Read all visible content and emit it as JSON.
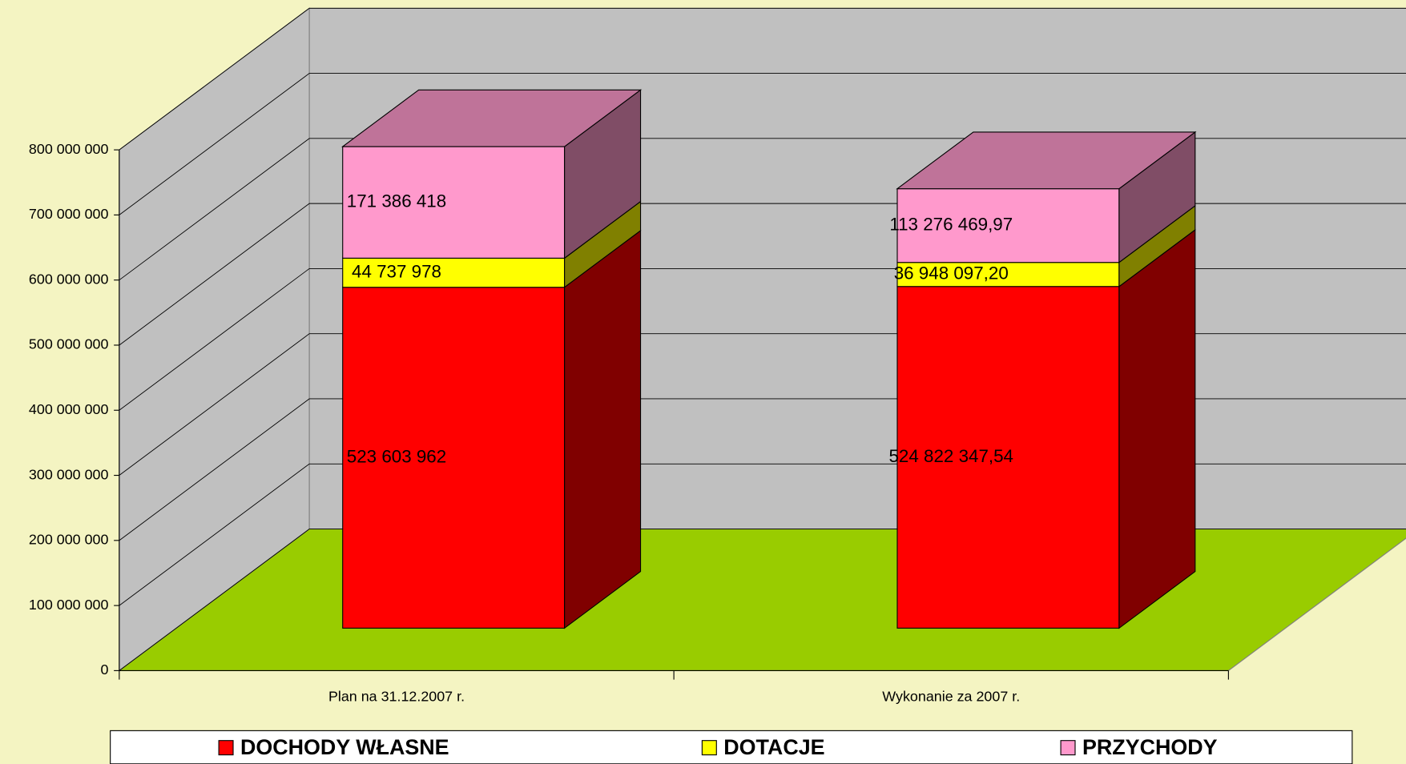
{
  "chart_data": {
    "type": "bar",
    "stacked": true,
    "categories": [
      "Plan na 31.12.2007 r.",
      "Wykonanie za 2007 r."
    ],
    "series": [
      {
        "name": "DOCHODY WŁASNE",
        "color": "#ff0000",
        "side_color": "#800000",
        "values": [
          523603962,
          524822347.54
        ],
        "value_labels": [
          "523 603 962",
          "524 822 347,54"
        ]
      },
      {
        "name": "DOTACJE",
        "color": "#ffff00",
        "side_color": "#808000",
        "values": [
          44737978,
          36948097.2
        ],
        "value_labels": [
          "44 737 978",
          "36 948 097,20"
        ]
      },
      {
        "name": "PRZYCHODY",
        "color": "#ff99cc",
        "side_color": "#804d66",
        "top_color": "#bf7399",
        "values": [
          171386418,
          113276469.97
        ],
        "value_labels": [
          "171 386 418",
          "113 276 469,97"
        ]
      }
    ],
    "ylim": [
      0,
      800000000
    ],
    "yticks": [
      0,
      {
        "value": 100000000,
        "label": "100 000 000"
      },
      {
        "value": 200000000,
        "label": "200 000 000"
      },
      {
        "value": 300000000,
        "label": "300 000 000"
      },
      {
        "value": 400000000,
        "label": "400 000 000"
      },
      {
        "value": 500000000,
        "label": "500 000 000"
      },
      {
        "value": 600000000,
        "label": "600 000 000"
      },
      {
        "value": 700000000,
        "label": "700 000 000"
      },
      {
        "value": 800000000,
        "label": "800 000 000"
      }
    ],
    "grid": true,
    "legend": "bottom",
    "wall_color": "#c0c0c0",
    "floor_color": "#99cc00"
  }
}
